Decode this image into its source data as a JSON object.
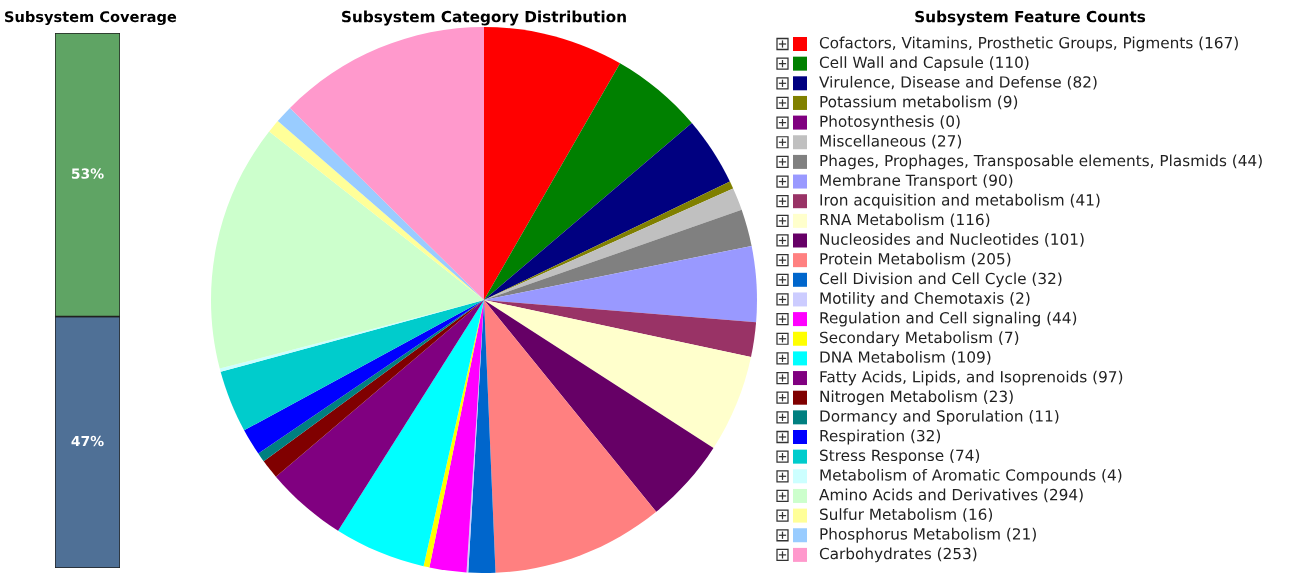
{
  "chart_data": [
    {
      "type": "bar",
      "title": "Subsystem Coverage",
      "stacked": true,
      "categories": [
        null
      ],
      "tick_labels": false,
      "series": [
        {
          "color": "#4f7096",
          "values": [
            47
          ],
          "value_labels": [
            "47%"
          ]
        },
        {
          "color": "#5fa464",
          "values": [
            53
          ],
          "value_labels": [
            "53%"
          ]
        }
      ]
    },
    {
      "type": "pie",
      "title": "Subsystem Category Distribution",
      "legend_title": "Subsystem Feature Counts",
      "legend": "right",
      "categories": [
        "Cofactors, Vitamins, Prosthetic Groups, Pigments (167)",
        "Cell Wall and Capsule (110)",
        "Virulence, Disease and Defense (82)",
        "Potassium metabolism (9)",
        "Photosynthesis (0)",
        "Miscellaneous (27)",
        "Phages, Prophages, Transposable elements, Plasmids (44)",
        "Membrane Transport (90)",
        "Iron acquisition and metabolism (41)",
        "RNA Metabolism (116)",
        "Nucleosides and Nucleotides (101)",
        "Protein Metabolism (205)",
        "Cell Division and Cell Cycle (32)",
        "Motility and Chemotaxis (2)",
        "Regulation and Cell signaling (44)",
        "Secondary Metabolism (7)",
        "DNA Metabolism (109)",
        "Fatty Acids, Lipids, and Isoprenoids (97)",
        "Nitrogen Metabolism (23)",
        "Dormancy and Sporulation (11)",
        "Respiration (32)",
        "Stress Response (74)",
        "Metabolism of Aromatic Compounds (4)",
        "Amino Acids and Derivatives (294)",
        "Sulfur Metabolism (16)",
        "Phosphorus Metabolism (21)",
        "Carbohydrates (253)"
      ],
      "values": [
        167,
        110,
        82,
        9,
        0,
        27,
        44,
        90,
        41,
        116,
        101,
        205,
        32,
        2,
        44,
        7,
        109,
        97,
        23,
        11,
        32,
        74,
        4,
        294,
        16,
        21,
        253
      ],
      "colors": [
        "#ff0000",
        "#008000",
        "#000080",
        "#808000",
        "#800080",
        "#c0c0c0",
        "#808080",
        "#9999ff",
        "#993366",
        "#ffffcc",
        "#660066",
        "#ff8080",
        "#0066cc",
        "#ccccff",
        "#ff00ff",
        "#ffff00",
        "#00ffff",
        "#800080",
        "#800000",
        "#008080",
        "#0000ff",
        "#00cccc",
        "#ccffff",
        "#ccffcc",
        "#ffff99",
        "#99ccff",
        "#ff99cc"
      ]
    }
  ]
}
